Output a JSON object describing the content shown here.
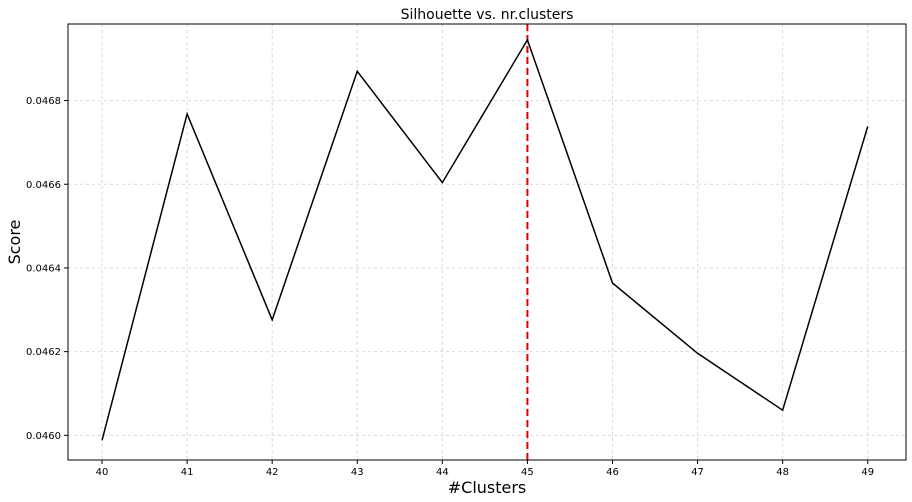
{
  "chart_data": {
    "type": "line",
    "title": "Silhouette vs. nr.clusters",
    "xlabel": "#Clusters",
    "ylabel": "Score",
    "x": [
      40,
      41,
      42,
      43,
      44,
      45,
      46,
      47,
      48,
      49
    ],
    "series": [
      {
        "values": [
          0.045988,
          0.046768,
          0.046276,
          0.04687,
          0.046604,
          0.046945,
          0.046364,
          0.046196,
          0.04606,
          0.046738
        ],
        "color": "#000000"
      }
    ],
    "xlim": [
      39.6,
      49.45
    ],
    "ylim": [
      0.045941,
      0.046983
    ],
    "xticks": [
      40,
      41,
      42,
      43,
      44,
      45,
      46,
      47,
      48,
      49
    ],
    "yticks": [
      0.046,
      0.0462,
      0.0464,
      0.0466,
      0.0468
    ],
    "ytick_labels": [
      "0.0460",
      "0.0462",
      "0.0464",
      "0.0466",
      "0.0468"
    ],
    "grid": true,
    "marker_line": {
      "x": 45,
      "color": "#e00000",
      "style": "dashed"
    }
  }
}
